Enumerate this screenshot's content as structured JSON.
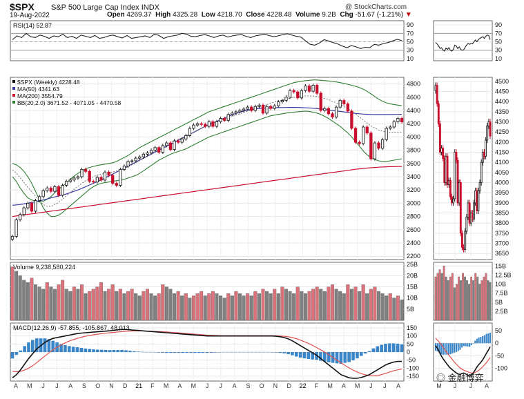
{
  "header": {
    "symbol": "$SPX",
    "name": "S&P 500 Large Cap Index",
    "exchange": "INDX",
    "date": "19-Aug-2022",
    "brand": "@ StockCharts.com",
    "open_label": "Open",
    "open": "4269.37",
    "high_label": "High",
    "high": "4325.28",
    "low_label": "Low",
    "low": "4218.70",
    "close_label": "Close",
    "close": "4228.48",
    "volume_label": "Volume",
    "volume": "9.2B",
    "chg_label": "Chg",
    "chg": "-51.67 (-1.21%)",
    "chg_arrow": "▼"
  },
  "watermark": "金融博弈",
  "colors": {
    "up": "#222222",
    "down": "#c8102e",
    "ma50": "#3a3aa0",
    "ma200": "#c8102e",
    "bb": "#2e7d32",
    "vol_down": "#d9727a",
    "vol_up": "#808080",
    "macd": "#111111",
    "signal": "#e05050",
    "hist": "#3a86c8"
  },
  "chart_data": [
    {
      "type": "line",
      "panel": "rsi-weekly",
      "legend": "RSI(14) 52.87",
      "y_ticks": [
        10,
        30,
        50,
        70,
        90
      ],
      "ylim": [
        5,
        100
      ],
      "levels": [
        30,
        70
      ],
      "values": [
        55,
        64,
        60,
        70,
        62,
        60,
        66,
        63,
        58,
        64,
        62,
        68,
        60,
        63,
        58,
        66,
        63,
        60,
        65,
        58,
        60,
        64,
        66,
        62,
        59,
        65,
        58,
        60,
        62,
        64,
        60,
        68,
        65,
        58,
        62,
        64,
        66,
        70,
        68,
        63,
        62,
        65,
        67,
        64,
        60,
        64,
        66,
        61,
        64,
        66,
        67,
        63,
        60,
        64,
        66,
        68,
        65,
        62,
        64,
        67,
        69,
        66,
        63,
        61,
        52,
        44,
        42,
        47,
        55,
        52,
        48,
        45,
        40,
        36,
        41,
        38,
        34,
        37,
        36,
        44,
        42,
        46,
        48,
        52,
        56,
        52.87
      ]
    },
    {
      "type": "candlestick",
      "panel": "price-weekly",
      "legend": [
        "$SPX (Weekly) 4228.48",
        "MA(50) 4341.63",
        "MA(200) 3554.79",
        "BB(20,2.0) 3671.52 - 4071.05 - 4470.58"
      ],
      "y_ticks": [
        2200,
        2400,
        2600,
        2800,
        3000,
        3200,
        3400,
        3600,
        3800,
        4000,
        4200,
        4400,
        4600,
        4800
      ],
      "ylim": [
        2150,
        4900
      ],
      "x_labels": [
        "A",
        "M",
        "J",
        "J",
        "A",
        "S",
        "O",
        "N",
        "D",
        "21",
        "F",
        "M",
        "A",
        "M",
        "J",
        "J",
        "A",
        "S",
        "O",
        "N",
        "D",
        "22",
        "F",
        "M",
        "A",
        "M",
        "J",
        "J",
        "A"
      ],
      "close": [
        2500,
        2750,
        2830,
        2930,
        3000,
        2880,
        3040,
        3100,
        3190,
        3230,
        3180,
        3250,
        3120,
        3270,
        3330,
        3350,
        3380,
        3400,
        3510,
        3480,
        3330,
        3320,
        3390,
        3350,
        3470,
        3420,
        3300,
        3270,
        3510,
        3560,
        3630,
        3640,
        3680,
        3700,
        3740,
        3760,
        3800,
        3840,
        3770,
        3870,
        3910,
        3810,
        3940,
        3920,
        3970,
        4020,
        4130,
        4180,
        4200,
        4190,
        4160,
        4230,
        4160,
        4230,
        4280,
        4250,
        4340,
        4360,
        4380,
        4400,
        4420,
        4450,
        4400,
        4460,
        4480,
        4360,
        4460,
        4430,
        4470,
        4530,
        4550,
        4600,
        4700,
        4680,
        4590,
        4700,
        4770,
        4690,
        4780,
        4660,
        4400,
        4430,
        4350,
        4300,
        4450,
        4550,
        4500,
        4390,
        4130,
        3920,
        3900,
        4150,
        4060,
        3670,
        3910,
        3830,
        3960,
        4130,
        4150,
        4230,
        4280,
        4228
      ],
      "ma50": [
        2970,
        2975,
        2980,
        2990,
        3000,
        3010,
        3020,
        3035,
        3050,
        3065,
        3080,
        3095,
        3110,
        3125,
        3140,
        3160,
        3180,
        3200,
        3225,
        3250,
        3275,
        3300,
        3325,
        3350,
        3380,
        3410,
        3440,
        3470,
        3500,
        3530,
        3560,
        3590,
        3620,
        3650,
        3680,
        3710,
        3740,
        3770,
        3800,
        3830,
        3860,
        3890,
        3920,
        3950,
        3980,
        4010,
        4040,
        4070,
        4100,
        4130,
        4160,
        4185,
        4210,
        4235,
        4260,
        4285,
        4310,
        4335,
        4355,
        4375,
        4390,
        4405,
        4415,
        4425,
        4430,
        4435,
        4438,
        4440,
        4442,
        4443,
        4444,
        4445,
        4446,
        4446,
        4445,
        4443,
        4440,
        4437,
        4433,
        4428,
        4422,
        4415,
        4408,
        4400,
        4392,
        4385,
        4378,
        4370,
        4362,
        4355,
        4350,
        4345,
        4342,
        4340,
        4338,
        4337,
        4337,
        4338,
        4339,
        4340,
        4341,
        4341.63
      ],
      "ma200": [
        2800,
        2808,
        2816,
        2824,
        2832,
        2840,
        2848,
        2856,
        2864,
        2872,
        2880,
        2888,
        2896,
        2904,
        2912,
        2920,
        2928,
        2936,
        2944,
        2952,
        2960,
        2968,
        2976,
        2984,
        2992,
        3000,
        3008,
        3016,
        3024,
        3032,
        3040,
        3048,
        3056,
        3064,
        3072,
        3080,
        3088,
        3096,
        3104,
        3112,
        3120,
        3128,
        3136,
        3144,
        3152,
        3160,
        3168,
        3176,
        3184,
        3192,
        3200,
        3208,
        3216,
        3224,
        3232,
        3240,
        3248,
        3256,
        3264,
        3272,
        3280,
        3288,
        3296,
        3304,
        3312,
        3320,
        3328,
        3336,
        3344,
        3352,
        3360,
        3368,
        3376,
        3384,
        3392,
        3400,
        3408,
        3416,
        3424,
        3432,
        3440,
        3448,
        3456,
        3464,
        3472,
        3480,
        3488,
        3496,
        3504,
        3512,
        3519,
        3525,
        3530,
        3535,
        3540,
        3544,
        3547,
        3550,
        3552,
        3553,
        3554,
        3554.79
      ],
      "bb_upper": [
        3400,
        3330,
        3230,
        3150,
        3080,
        3050,
        3030,
        3020,
        3030,
        3060,
        3100,
        3160,
        3210,
        3260,
        3310,
        3360,
        3410,
        3450,
        3490,
        3520,
        3540,
        3555,
        3570,
        3580,
        3590,
        3600,
        3610,
        3630,
        3660,
        3690,
        3720,
        3760,
        3800,
        3840,
        3870,
        3900,
        3930,
        3960,
        3990,
        4020,
        4050,
        4080,
        4110,
        4140,
        4170,
        4200,
        4230,
        4260,
        4290,
        4320,
        4350,
        4380,
        4400,
        4420,
        4440,
        4460,
        4480,
        4500,
        4520,
        4540,
        4560,
        4580,
        4600,
        4620,
        4640,
        4660,
        4680,
        4700,
        4720,
        4740,
        4760,
        4780,
        4800,
        4820,
        4830,
        4840,
        4850,
        4855,
        4860,
        4860,
        4855,
        4850,
        4845,
        4838,
        4830,
        4820,
        4808,
        4795,
        4780,
        4765,
        4745,
        4720,
        4690,
        4650,
        4610,
        4570,
        4540,
        4515,
        4500,
        4490,
        4480,
        4470.58
      ],
      "bb_lower": [
        3600,
        3580,
        3540,
        3480,
        3400,
        3300,
        3180,
        3050,
        2930,
        2850,
        2800,
        2800,
        2820,
        2860,
        2910,
        2960,
        3010,
        3060,
        3110,
        3160,
        3210,
        3250,
        3280,
        3300,
        3310,
        3320,
        3330,
        3340,
        3350,
        3360,
        3380,
        3400,
        3420,
        3450,
        3490,
        3530,
        3570,
        3610,
        3650,
        3680,
        3710,
        3740,
        3760,
        3780,
        3800,
        3820,
        3850,
        3880,
        3910,
        3940,
        3970,
        4000,
        4020,
        4040,
        4060,
        4080,
        4100,
        4120,
        4140,
        4160,
        4180,
        4200,
        4220,
        4240,
        4260,
        4280,
        4300,
        4320,
        4330,
        4340,
        4350,
        4360,
        4370,
        4375,
        4380,
        4385,
        4390,
        4385,
        4375,
        4360,
        4340,
        4310,
        4280,
        4240,
        4200,
        4160,
        4110,
        4060,
        4000,
        3930,
        3860,
        3790,
        3730,
        3690,
        3660,
        3640,
        3630,
        3630,
        3640,
        3650,
        3660,
        3671.52
      ]
    },
    {
      "type": "bar",
      "panel": "volume-weekly",
      "legend": "Volume 9,238,580,224",
      "y_ticks": [
        "5B",
        "10B",
        "15B",
        "20B",
        "25B"
      ],
      "ylim": [
        0,
        26
      ],
      "values": [
        24,
        22,
        20,
        18,
        17,
        19,
        16,
        15,
        14,
        17,
        15,
        14,
        16,
        18,
        14,
        13,
        15,
        14,
        16,
        12,
        13,
        14,
        15,
        17,
        13,
        14,
        16,
        13,
        14,
        12,
        13,
        14,
        12,
        11,
        13,
        14,
        12,
        11,
        12,
        16,
        15,
        14,
        12,
        13,
        11,
        12,
        10,
        11,
        12,
        13,
        11,
        12,
        13,
        12,
        11,
        10,
        12,
        11,
        13,
        12,
        11,
        12,
        11,
        13,
        12,
        14,
        13,
        12,
        14,
        12,
        15,
        14,
        13,
        12,
        15,
        13,
        12,
        13,
        14,
        15,
        14,
        13,
        15,
        16,
        14,
        13,
        12,
        16,
        14,
        15,
        13,
        16,
        12,
        14,
        15,
        13,
        12,
        11,
        12,
        10,
        11,
        9.24
      ]
    },
    {
      "type": "line",
      "panel": "macd-weekly",
      "legend": "MACD(12,26,9) -57.855, -105.867, 48.013",
      "y_ticks": [
        -150,
        -100,
        -50,
        0,
        50,
        100,
        150
      ],
      "ylim": [
        -180,
        180
      ],
      "macd": [
        -160,
        -140,
        -110,
        -75,
        -40,
        -10,
        20,
        40,
        60,
        75,
        85,
        90,
        95,
        100,
        105,
        110,
        115,
        118,
        120,
        122,
        124,
        126,
        128,
        130,
        132,
        135,
        138,
        140,
        140,
        138,
        136,
        134,
        132,
        130,
        128,
        126,
        124,
        122,
        120,
        118,
        116,
        114,
        112,
        110,
        108,
        106,
        104,
        102,
        100,
        100,
        100,
        100,
        100,
        100,
        100,
        100,
        100,
        100,
        100,
        100,
        100,
        100,
        100,
        100,
        100,
        98,
        95,
        90,
        82,
        70,
        55,
        40,
        25,
        10,
        -5,
        -20,
        -40,
        -60,
        -80,
        -100,
        -120,
        -140,
        -150,
        -160,
        -163,
        -163,
        -158,
        -150,
        -140,
        -125,
        -110,
        -95,
        -80,
        -70,
        -62,
        -58,
        -57.855
      ],
      "signal": [
        -120,
        -122,
        -120,
        -112,
        -100,
        -85,
        -65,
        -45,
        -25,
        -5,
        15,
        30,
        45,
        57,
        68,
        77,
        85,
        92,
        98,
        103,
        107,
        111,
        114,
        117,
        120,
        122,
        125,
        127,
        129,
        130,
        131,
        131,
        131,
        130,
        129,
        128,
        127,
        126,
        125,
        123,
        121,
        119,
        117,
        115,
        113,
        111,
        109,
        107,
        105,
        104,
        103,
        102,
        101,
        101,
        101,
        101,
        101,
        101,
        101,
        101,
        101,
        101,
        101,
        101,
        101,
        101,
        100,
        98,
        95,
        90,
        83,
        74,
        64,
        53,
        41,
        28,
        14,
        -1,
        -17,
        -33,
        -50,
        -67,
        -83,
        -98,
        -112,
        -124,
        -134,
        -141,
        -146,
        -148,
        -146,
        -140,
        -132,
        -124,
        -116,
        -110,
        -105.867
      ],
      "hist": [
        -40,
        -18,
        10,
        37,
        60,
        75,
        85,
        85,
        85,
        80,
        70,
        60,
        50,
        43,
        37,
        33,
        30,
        26,
        22,
        19,
        17,
        15,
        14,
        13,
        12,
        13,
        13,
        13,
        11,
        8,
        5,
        3,
        1,
        0,
        -1,
        -2,
        -3,
        -4,
        -5,
        -5,
        -5,
        -5,
        -5,
        -5,
        -5,
        -5,
        -5,
        -5,
        -5,
        -4,
        -3,
        -2,
        -1,
        -1,
        -1,
        -1,
        -1,
        -1,
        -1,
        -1,
        -1,
        -1,
        -1,
        -1,
        -1,
        -3,
        -5,
        -8,
        -13,
        -20,
        -28,
        -34,
        -39,
        -43,
        -46,
        -48,
        -54,
        -59,
        -63,
        -67,
        -70,
        -73,
        -67,
        -62,
        -51,
        -39,
        -24,
        -9,
        6,
        23,
        36,
        45,
        52,
        54,
        54,
        52,
        48.013
      ]
    },
    {
      "type": "candlestick",
      "panel": "price-daily-inset",
      "y_ticks": [
        3650,
        3700,
        3750,
        3800,
        3850,
        3900,
        3950,
        4000,
        4050,
        4100,
        4150,
        4200,
        4250,
        4300,
        4350,
        4400,
        4450,
        4500
      ],
      "ylim": [
        3620,
        4520
      ],
      "x_labels": [
        "M",
        "J",
        "J",
        "A"
      ],
      "close": [
        4480,
        4390,
        4290,
        4150,
        4170,
        4120,
        4000,
        4130,
        3990,
        4010,
        3930,
        3900,
        3920,
        4150,
        4110,
        3900,
        4000,
        3750,
        3680,
        3670,
        3760,
        3830,
        3900,
        3800,
        3850,
        3820,
        3900,
        3960,
        3860,
        3960,
        4000,
        4100,
        4150,
        4130,
        4210,
        4280,
        4300,
        4230
      ]
    },
    {
      "type": "line",
      "panel": "rsi-daily-inset",
      "y_ticks": [
        10,
        30,
        50,
        70,
        90
      ],
      "ylim": [
        5,
        100
      ],
      "values": [
        48,
        45,
        40,
        34,
        36,
        30,
        28,
        35,
        32,
        36,
        30,
        28,
        32,
        42,
        40,
        34,
        38,
        32,
        30,
        31,
        37,
        42,
        46,
        44,
        46,
        45,
        50,
        54,
        50,
        55,
        58,
        60,
        62,
        58,
        63,
        66,
        65,
        55
      ]
    },
    {
      "type": "bar",
      "panel": "volume-daily-inset",
      "y_ticks": [
        "2.5B",
        "5B",
        "7.5B",
        "10B",
        "12.5B",
        "15B"
      ],
      "ylim": [
        0,
        16
      ],
      "values": [
        12,
        13,
        14,
        13,
        15,
        12,
        11,
        12,
        13,
        9,
        10,
        12,
        11,
        13,
        12,
        11,
        10,
        12,
        11,
        13,
        12,
        10,
        11,
        12,
        13,
        11,
        10.5
      ]
    },
    {
      "type": "line",
      "panel": "macd-daily-inset",
      "y_ticks": [
        -100,
        -50,
        0,
        50
      ],
      "ylim": [
        -150,
        80
      ],
      "macd": [
        -10,
        -20,
        -35,
        -50,
        -62,
        -72,
        -82,
        -92,
        -100,
        -106,
        -112,
        -118,
        -122,
        -124,
        -120,
        -118,
        -122,
        -126,
        -130,
        -126,
        -118,
        -106,
        -94,
        -84,
        -76,
        -66,
        -54,
        -40,
        -28,
        -14
      ],
      "signal": [
        20,
        12,
        4,
        -6,
        -16,
        -27,
        -37,
        -47,
        -57,
        -66,
        -75,
        -83,
        -91,
        -98,
        -103,
        -107,
        -110,
        -113,
        -116,
        -118,
        -118,
        -116,
        -112,
        -107,
        -101,
        -94,
        -86,
        -77,
        -67,
        -56
      ],
      "hist": [
        -30,
        -32,
        -39,
        -44,
        -46,
        -45,
        -45,
        -45,
        -43,
        -40,
        -37,
        -35,
        -31,
        -26,
        -17,
        -11,
        -12,
        -13,
        -14,
        -8,
        0,
        10,
        18,
        23,
        25,
        28,
        32,
        37,
        39,
        42
      ]
    }
  ]
}
